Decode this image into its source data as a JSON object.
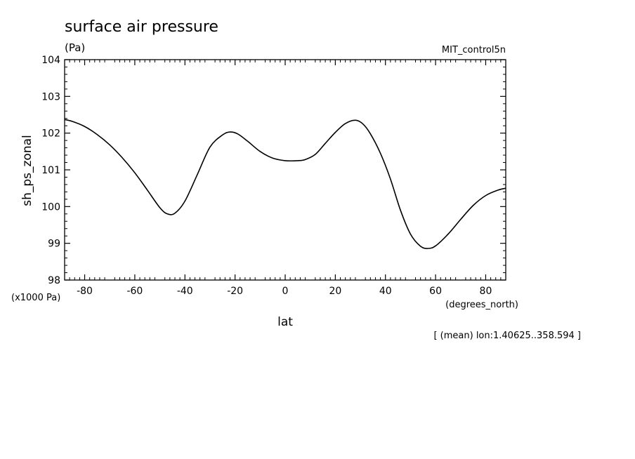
{
  "chart_data": {
    "type": "line",
    "title": "surface air pressure",
    "units": "(Pa)",
    "dataset": "MIT_control5n",
    "ylabel": "sh_ps_zonal",
    "yscale_note": "(x1000 Pa)",
    "xlabel": "lat",
    "xunits": "(degrees_north)",
    "footnote": "[ (mean) lon:1.40625..358.594 ]",
    "xlim": [
      -88,
      88
    ],
    "ylim": [
      98,
      104
    ],
    "xticks": [
      -80,
      -60,
      -40,
      -20,
      0,
      20,
      40,
      60,
      80
    ],
    "xtick_labels": [
      "-80",
      "-60",
      "-40",
      "-20",
      "0",
      "20",
      "40",
      "60",
      "80"
    ],
    "yticks": [
      98,
      99,
      100,
      101,
      102,
      103,
      104
    ],
    "ytick_labels": [
      "98",
      "99",
      "100",
      "101",
      "102",
      "103",
      "104"
    ],
    "grid": false,
    "legend": "none",
    "line_color": "#000000",
    "series": [
      {
        "x": [
          -88,
          -85,
          -80,
          -75,
          -70,
          -65,
          -60,
          -55,
          -50,
          -47,
          -44,
          -40,
          -35,
          -30,
          -25,
          -22,
          -19,
          -15,
          -10,
          -5,
          0,
          5,
          8,
          12,
          16,
          20,
          24,
          28,
          31,
          34,
          38,
          42,
          46,
          50,
          54,
          57,
          60,
          65,
          70,
          75,
          80,
          85,
          88
        ],
        "y": [
          102.37,
          102.32,
          102.18,
          101.96,
          101.68,
          101.33,
          100.92,
          100.45,
          99.97,
          99.8,
          99.82,
          100.15,
          100.88,
          101.62,
          101.95,
          102.03,
          101.98,
          101.78,
          101.5,
          101.32,
          101.25,
          101.25,
          101.28,
          101.42,
          101.72,
          102.02,
          102.26,
          102.35,
          102.25,
          101.98,
          101.45,
          100.75,
          99.9,
          99.25,
          98.92,
          98.86,
          98.93,
          99.25,
          99.65,
          100.03,
          100.3,
          100.45,
          100.5
        ]
      }
    ]
  }
}
